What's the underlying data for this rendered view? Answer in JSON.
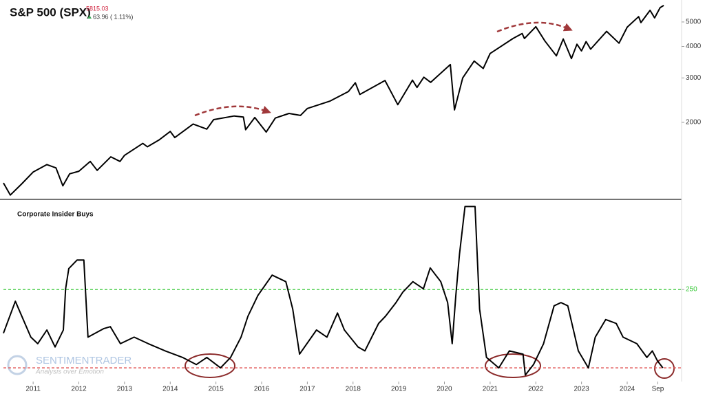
{
  "chart_data": [
    {
      "type": "line",
      "title": "S&P 500 (SPX)",
      "last_price": 5815.03,
      "change_label": "63.96 ( 1.11%)",
      "log_y": true,
      "xlim": [
        2010.35,
        2025.19
      ],
      "ylim": [
        990,
        6110
      ],
      "yticks": [
        2000,
        3000,
        4000,
        5000
      ],
      "series": [
        {
          "name": "S&P 500 (SPX)",
          "color": "#000000",
          "x": [
            2010.35,
            2010.5,
            2010.75,
            2011.0,
            2011.3,
            2011.5,
            2011.65,
            2011.8,
            2012.0,
            2012.25,
            2012.4,
            2012.7,
            2012.9,
            2013.0,
            2013.4,
            2013.5,
            2013.75,
            2014.0,
            2014.1,
            2014.5,
            2014.8,
            2014.95,
            2015.4,
            2015.6,
            2015.65,
            2015.85,
            2016.1,
            2016.3,
            2016.6,
            2016.85,
            2017.0,
            2017.5,
            2017.9,
            2018.05,
            2018.15,
            2018.7,
            2018.98,
            2019.3,
            2019.4,
            2019.55,
            2019.7,
            2020.0,
            2020.13,
            2020.22,
            2020.4,
            2020.65,
            2020.85,
            2021.0,
            2021.5,
            2021.7,
            2021.75,
            2022.0,
            2022.2,
            2022.45,
            2022.6,
            2022.78,
            2022.9,
            2023.0,
            2023.1,
            2023.2,
            2023.55,
            2023.82,
            2024.0,
            2024.25,
            2024.3,
            2024.5,
            2024.6,
            2024.72,
            2024.8
          ],
          "values": [
            1150,
            1030,
            1140,
            1270,
            1360,
            1320,
            1120,
            1250,
            1280,
            1400,
            1290,
            1460,
            1400,
            1480,
            1650,
            1600,
            1700,
            1840,
            1740,
            1970,
            1880,
            2050,
            2120,
            2100,
            1870,
            2090,
            1830,
            2080,
            2170,
            2130,
            2270,
            2430,
            2650,
            2870,
            2580,
            2930,
            2350,
            2940,
            2750,
            3020,
            2880,
            3230,
            3390,
            2240,
            3000,
            3500,
            3270,
            3750,
            4300,
            4500,
            4300,
            4790,
            4200,
            3670,
            4280,
            3580,
            4080,
            3840,
            4180,
            3900,
            4590,
            4120,
            4770,
            5250,
            4970,
            5560,
            5190,
            5700,
            5815
          ]
        }
      ]
    },
    {
      "type": "line",
      "title": "Corporate Insider Buys",
      "xlim": [
        2010.35,
        2025.19
      ],
      "ylim": [
        109,
        388
      ],
      "yticks": [
        250
      ],
      "xticks": [
        2011,
        2012,
        2013,
        2014,
        2015,
        2016,
        2017,
        2018,
        2019,
        2020,
        2021,
        2022,
        2023,
        2024,
        {
          "value": 2024.67,
          "label": "Sep"
        }
      ],
      "reference_lines": [
        {
          "value": 250,
          "color": "#3cc93c"
        },
        {
          "value": 130,
          "color": "#e05555"
        }
      ],
      "watermark": [
        "SENTIMENTRADER",
        "Analysis over Emotion"
      ],
      "series": [
        {
          "name": "Corporate Insider Buys",
          "color": "#000000",
          "x": [
            2010.35,
            2010.61,
            2010.95,
            2011.1,
            2011.3,
            2011.48,
            2011.66,
            2011.71,
            2011.78,
            2011.96,
            2012.11,
            2012.2,
            2012.54,
            2012.69,
            2012.91,
            2013.21,
            2013.52,
            2013.89,
            2014.27,
            2014.57,
            2014.8,
            2015.1,
            2015.32,
            2015.55,
            2015.7,
            2015.92,
            2016.23,
            2016.53,
            2016.68,
            2016.83,
            2017.2,
            2017.43,
            2017.66,
            2017.81,
            2018.11,
            2018.26,
            2018.56,
            2018.71,
            2018.94,
            2019.09,
            2019.31,
            2019.54,
            2019.69,
            2019.92,
            2020.07,
            2020.17,
            2020.25,
            2020.33,
            2020.45,
            2020.67,
            2020.77,
            2020.92,
            2021.19,
            2021.42,
            2021.72,
            2021.77,
            2021.95,
            2022.17,
            2022.4,
            2022.55,
            2022.7,
            2022.93,
            2023.15,
            2023.3,
            2023.53,
            2023.76,
            2023.91,
            2024.21,
            2024.43,
            2024.55,
            2024.66,
            2024.78
          ],
          "values": [
            183,
            232,
            177,
            167,
            188,
            162,
            188,
            251,
            282,
            295,
            295,
            177,
            190,
            193,
            167,
            177,
            167,
            156,
            146,
            135,
            146,
            130,
            146,
            177,
            209,
            241,
            272,
            262,
            220,
            151,
            188,
            177,
            214,
            188,
            162,
            156,
            198,
            209,
            230,
            246,
            262,
            251,
            283,
            262,
            230,
            167,
            241,
            304,
            377,
            377,
            220,
            146,
            130,
            156,
            151,
            119,
            135,
            167,
            225,
            230,
            225,
            156,
            130,
            177,
            204,
            198,
            177,
            167,
            146,
            156,
            141,
            130
          ]
        }
      ]
    }
  ]
}
